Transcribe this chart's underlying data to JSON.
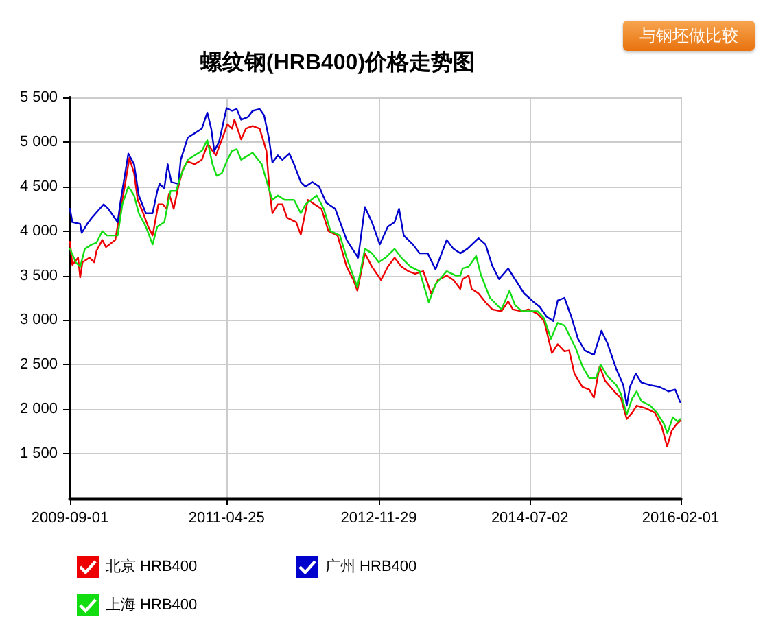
{
  "chart_data": {
    "type": "line",
    "title": "螺纹钢(HRB400)价格走势图",
    "annotations": [
      "与钢坯做比较"
    ],
    "xlim": [
      "2009-09-01",
      "2016-02-01"
    ],
    "xticks": [
      "2009-09-01",
      "2011-04-25",
      "2012-11-29",
      "2014-07-02",
      "2016-02-01"
    ],
    "ylim": [
      1000,
      5500
    ],
    "yticks": [
      {
        "value": 1500,
        "label": "1 500"
      },
      {
        "value": 2000,
        "label": "2 000"
      },
      {
        "value": 2500,
        "label": "2 500"
      },
      {
        "value": 3000,
        "label": "3 000"
      },
      {
        "value": 3500,
        "label": "3 500"
      },
      {
        "value": 4000,
        "label": "4 000"
      },
      {
        "value": 4500,
        "label": "4 500"
      },
      {
        "value": 5000,
        "label": "5 000"
      },
      {
        "value": 5500,
        "label": "5 500"
      }
    ],
    "grid": true,
    "legend": "bottom left",
    "marker": "none",
    "series": [
      {
        "name": "北京 HRB400",
        "color": "#ee0000",
        "x": [
          "2009-09-01",
          "2009-09-10",
          "2009-10-02",
          "2009-10-10",
          "2009-10-19",
          "2009-11-15",
          "2009-12-03",
          "2009-12-12",
          "2010-01-03",
          "2010-01-17",
          "2010-02-22",
          "2010-03-08",
          "2010-03-30",
          "2010-04-17",
          "2010-05-05",
          "2010-05-19",
          "2010-06-09",
          "2010-06-28",
          "2010-07-15",
          "2010-08-06",
          "2010-08-24",
          "2010-09-07",
          "2010-09-16",
          "2010-10-04",
          "2010-10-22",
          "2010-11-09",
          "2010-11-27",
          "2010-12-24",
          "2011-01-20",
          "2011-02-12",
          "2011-03-02",
          "2011-03-15",
          "2011-04-10",
          "2011-04-28",
          "2011-05-16",
          "2011-05-25",
          "2011-06-20",
          "2011-07-08",
          "2011-08-03",
          "2011-08-30",
          "2011-09-25",
          "2011-10-07",
          "2011-10-18",
          "2011-11-08",
          "2011-11-25",
          "2011-12-13",
          "2012-01-17",
          "2012-02-04",
          "2012-03-02",
          "2012-03-28",
          "2012-04-23",
          "2012-05-20",
          "2012-06-24",
          "2012-07-29",
          "2012-08-24",
          "2012-09-08",
          "2012-10-07",
          "2012-11-03",
          "2012-12-08",
          "2013-01-03",
          "2013-01-29",
          "2013-02-24",
          "2013-03-22",
          "2013-04-18",
          "2013-05-19",
          "2013-06-18",
          "2013-07-14",
          "2013-08-17",
          "2013-09-12",
          "2013-10-08",
          "2013-10-17",
          "2013-11-09",
          "2013-11-21",
          "2013-12-17",
          "2014-01-13",
          "2014-02-08",
          "2014-03-15",
          "2014-04-10",
          "2014-04-28",
          "2014-06-01",
          "2014-06-27",
          "2014-08-01",
          "2014-08-26",
          "2014-09-25",
          "2014-10-17",
          "2014-11-12",
          "2014-11-30",
          "2014-12-20",
          "2015-01-20",
          "2015-02-15",
          "2015-03-05",
          "2015-03-27",
          "2015-04-17",
          "2015-05-22",
          "2015-06-17",
          "2015-07-09",
          "2015-07-30",
          "2015-08-16",
          "2015-09-20",
          "2015-10-25",
          "2015-11-20",
          "2015-12-11",
          "2015-12-29",
          "2016-01-16",
          "2016-01-30"
        ],
        "values": [
          3880,
          3620,
          3700,
          3480,
          3650,
          3700,
          3650,
          3780,
          3900,
          3820,
          3900,
          4150,
          4500,
          4820,
          4650,
          4350,
          4200,
          4050,
          3950,
          4300,
          4300,
          4250,
          4420,
          4250,
          4500,
          4700,
          4780,
          4750,
          4800,
          4980,
          4900,
          4850,
          5050,
          5200,
          5150,
          5250,
          5030,
          5150,
          5180,
          5150,
          4900,
          4450,
          4200,
          4300,
          4300,
          4150,
          4100,
          3960,
          4350,
          4300,
          4250,
          4000,
          3950,
          3600,
          3450,
          3330,
          3750,
          3600,
          3450,
          3600,
          3700,
          3600,
          3550,
          3520,
          3550,
          3300,
          3450,
          3500,
          3450,
          3350,
          3460,
          3500,
          3350,
          3300,
          3200,
          3120,
          3100,
          3210,
          3120,
          3100,
          3120,
          3070,
          2990,
          2630,
          2730,
          2650,
          2660,
          2400,
          2250,
          2220,
          2130,
          2480,
          2320,
          2200,
          2120,
          1890,
          1960,
          2040,
          2010,
          1960,
          1810,
          1580,
          1760,
          1830,
          1870
        ]
      },
      {
        "name": "广州 HRB400",
        "color": "#0000cc",
        "x": [
          "2009-09-01",
          "2009-09-10",
          "2009-10-10",
          "2009-10-16",
          "2009-11-06",
          "2009-11-24",
          "2010-01-08",
          "2010-01-26",
          "2010-03-03",
          "2010-03-15",
          "2010-04-13",
          "2010-05-05",
          "2010-05-23",
          "2010-06-19",
          "2010-07-15",
          "2010-08-02",
          "2010-08-11",
          "2010-08-29",
          "2010-09-11",
          "2010-09-25",
          "2010-10-22",
          "2010-10-31",
          "2010-11-27",
          "2010-12-24",
          "2011-01-20",
          "2011-02-10",
          "2011-02-25",
          "2011-03-09",
          "2011-03-27",
          "2011-04-25",
          "2011-05-16",
          "2011-06-03",
          "2011-06-20",
          "2011-07-16",
          "2011-08-03",
          "2011-08-30",
          "2011-09-16",
          "2011-10-04",
          "2011-10-18",
          "2011-11-08",
          "2011-11-25",
          "2011-12-22",
          "2012-01-09",
          "2012-02-04",
          "2012-02-22",
          "2012-03-19",
          "2012-04-14",
          "2012-05-11",
          "2012-06-15",
          "2012-07-29",
          "2012-09-11",
          "2012-10-07",
          "2012-11-03",
          "2012-12-03",
          "2013-01-03",
          "2013-01-29",
          "2013-02-15",
          "2013-03-05",
          "2013-04-09",
          "2013-05-05",
          "2013-06-05",
          "2013-07-05",
          "2013-07-22",
          "2013-08-17",
          "2013-09-12",
          "2013-10-08",
          "2013-11-04",
          "2013-12-17",
          "2014-01-13",
          "2014-02-08",
          "2014-03-06",
          "2014-04-10",
          "2014-05-06",
          "2014-06-10",
          "2014-07-14",
          "2014-08-09",
          "2014-09-04",
          "2014-09-30",
          "2014-10-17",
          "2014-11-12",
          "2014-12-08",
          "2015-01-03",
          "2015-01-29",
          "2015-03-05",
          "2015-04-03",
          "2015-04-26",
          "2015-05-30",
          "2015-06-26",
          "2015-07-09",
          "2015-07-21",
          "2015-08-13",
          "2015-09-03",
          "2015-10-07",
          "2015-11-11",
          "2015-12-16",
          "2016-01-11",
          "2016-01-30"
        ],
        "values": [
          4250,
          4100,
          4080,
          3980,
          4080,
          4150,
          4300,
          4250,
          4100,
          4350,
          4870,
          4750,
          4400,
          4200,
          4200,
          4450,
          4530,
          4480,
          4750,
          4550,
          4530,
          4800,
          5050,
          5100,
          5150,
          5330,
          5150,
          4900,
          5000,
          5380,
          5350,
          5370,
          5250,
          5280,
          5350,
          5370,
          5300,
          5050,
          4770,
          4850,
          4800,
          4870,
          4750,
          4550,
          4500,
          4550,
          4500,
          4320,
          4250,
          3900,
          3700,
          4270,
          4100,
          3850,
          4050,
          4100,
          4250,
          3950,
          3850,
          3750,
          3750,
          3570,
          3700,
          3900,
          3800,
          3750,
          3800,
          3920,
          3850,
          3610,
          3460,
          3580,
          3460,
          3300,
          3210,
          3150,
          3040,
          2990,
          3220,
          3250,
          3040,
          2790,
          2660,
          2610,
          2880,
          2740,
          2450,
          2270,
          2040,
          2250,
          2400,
          2300,
          2270,
          2250,
          2200,
          2220,
          2080
        ]
      },
      {
        "name": "上海 HRB400",
        "color": "#11dd11",
        "x": [
          "2009-09-01",
          "2009-09-23",
          "2009-10-10",
          "2009-10-28",
          "2009-11-24",
          "2009-12-12",
          "2010-01-03",
          "2010-01-21",
          "2010-03-03",
          "2010-03-21",
          "2010-04-13",
          "2010-05-05",
          "2010-05-23",
          "2010-06-19",
          "2010-07-15",
          "2010-08-02",
          "2010-08-29",
          "2010-09-22",
          "2010-10-13",
          "2010-11-04",
          "2010-11-27",
          "2010-12-24",
          "2011-01-20",
          "2011-02-10",
          "2011-03-02",
          "2011-03-18",
          "2011-04-07",
          "2011-04-28",
          "2011-05-16",
          "2011-06-03",
          "2011-06-20",
          "2011-08-03",
          "2011-09-07",
          "2011-10-07",
          "2011-10-18",
          "2011-11-08",
          "2011-12-04",
          "2012-01-09",
          "2012-02-04",
          "2012-02-22",
          "2012-04-05",
          "2012-05-02",
          "2012-05-28",
          "2012-07-03",
          "2012-07-29",
          "2012-09-08",
          "2012-10-07",
          "2012-11-03",
          "2012-11-29",
          "2012-12-25",
          "2013-01-29",
          "2013-02-24",
          "2013-03-31",
          "2013-05-05",
          "2013-06-09",
          "2013-07-05",
          "2013-08-17",
          "2013-09-21",
          "2013-10-08",
          "2013-10-17",
          "2013-11-09",
          "2013-12-08",
          "2013-12-26",
          "2014-01-30",
          "2014-03-15",
          "2014-04-15",
          "2014-05-06",
          "2014-06-01",
          "2014-07-06",
          "2014-08-01",
          "2014-08-26",
          "2014-09-21",
          "2014-10-17",
          "2014-11-12",
          "2014-12-26",
          "2015-01-20",
          "2015-02-15",
          "2015-03-13",
          "2015-03-31",
          "2015-04-26",
          "2015-05-30",
          "2015-06-17",
          "2015-07-09",
          "2015-07-30",
          "2015-08-16",
          "2015-09-03",
          "2015-10-07",
          "2015-11-02",
          "2015-11-28",
          "2015-12-12",
          "2016-01-02",
          "2016-01-20",
          "2016-01-30"
        ],
        "values": [
          3800,
          3650,
          3600,
          3800,
          3850,
          3870,
          4000,
          3950,
          3950,
          4300,
          4500,
          4400,
          4200,
          4050,
          3850,
          4050,
          4100,
          4450,
          4450,
          4650,
          4800,
          4850,
          4900,
          5020,
          4750,
          4620,
          4650,
          4800,
          4900,
          4920,
          4800,
          4880,
          4750,
          4450,
          4350,
          4400,
          4350,
          4350,
          4200,
          4300,
          4400,
          4250,
          4000,
          3950,
          3700,
          3370,
          3800,
          3750,
          3650,
          3700,
          3800,
          3700,
          3600,
          3550,
          3200,
          3400,
          3550,
          3500,
          3500,
          3580,
          3600,
          3720,
          3510,
          3250,
          3120,
          3330,
          3170,
          3100,
          3100,
          3100,
          3020,
          2790,
          2970,
          2940,
          2680,
          2480,
          2350,
          2350,
          2500,
          2370,
          2270,
          2170,
          1940,
          2120,
          2200,
          2090,
          2040,
          1960,
          1840,
          1730,
          1910,
          1860,
          1890
        ]
      }
    ]
  }
}
